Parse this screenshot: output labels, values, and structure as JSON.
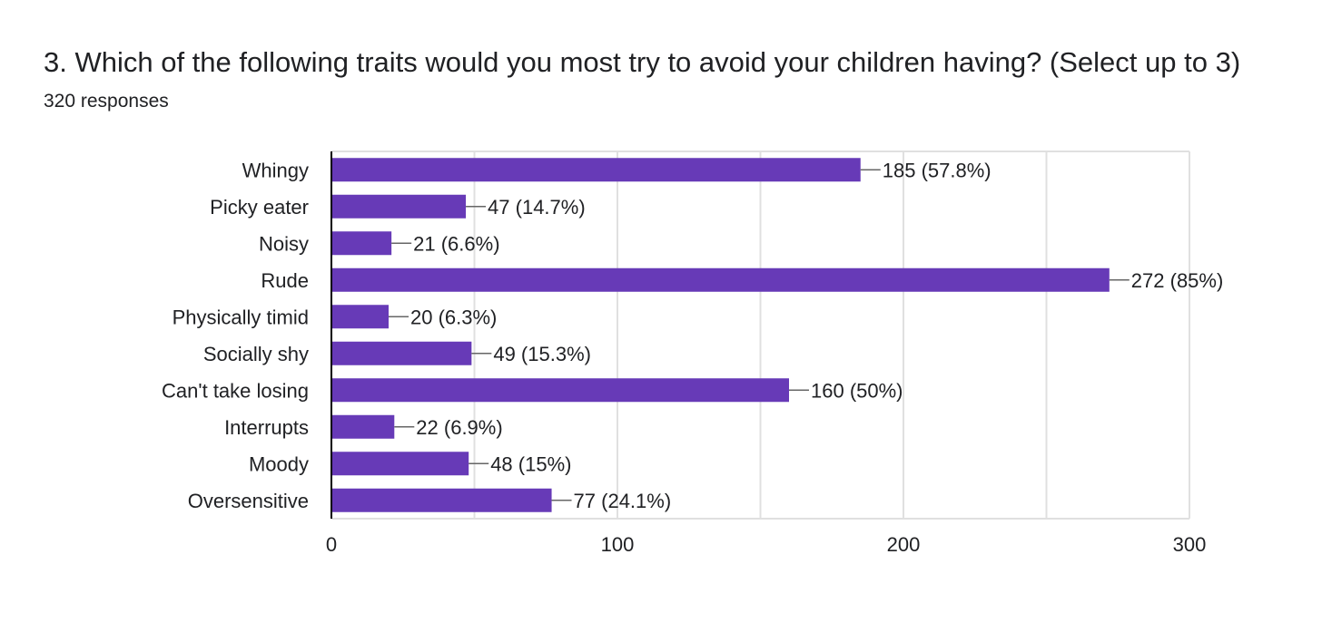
{
  "question": {
    "title": "3. Which of the following traits would you most try to avoid your children having? (Select up to 3)",
    "responses": "320 responses"
  },
  "colors": {
    "bar": "#673ab7",
    "grid": "#e0e0e0",
    "axis": "#000000",
    "text": "#202124",
    "leader": "#666666"
  },
  "chart_data": {
    "type": "bar",
    "orientation": "horizontal",
    "categories": [
      "Whingy",
      "Picky eater",
      "Noisy",
      "Rude",
      "Physically timid",
      "Socially shy",
      "Can't take losing",
      "Interrupts",
      "Moody",
      "Oversensitive"
    ],
    "values": [
      185,
      47,
      21,
      272,
      20,
      49,
      160,
      22,
      48,
      77
    ],
    "data_labels": [
      "185 (57.8%)",
      "47 (14.7%)",
      "21 (6.6%)",
      "272 (85%)",
      "20 (6.3%)",
      "49 (15.3%)",
      "160 (50%)",
      "22 (6.9%)",
      "48 (15%)",
      "77 (24.1%)"
    ],
    "xlim": [
      0,
      300
    ],
    "xticks": [
      0,
      100,
      200,
      300
    ],
    "xtick_labels": [
      "0",
      "100",
      "200",
      "300"
    ],
    "grid": true,
    "legend": "none"
  }
}
